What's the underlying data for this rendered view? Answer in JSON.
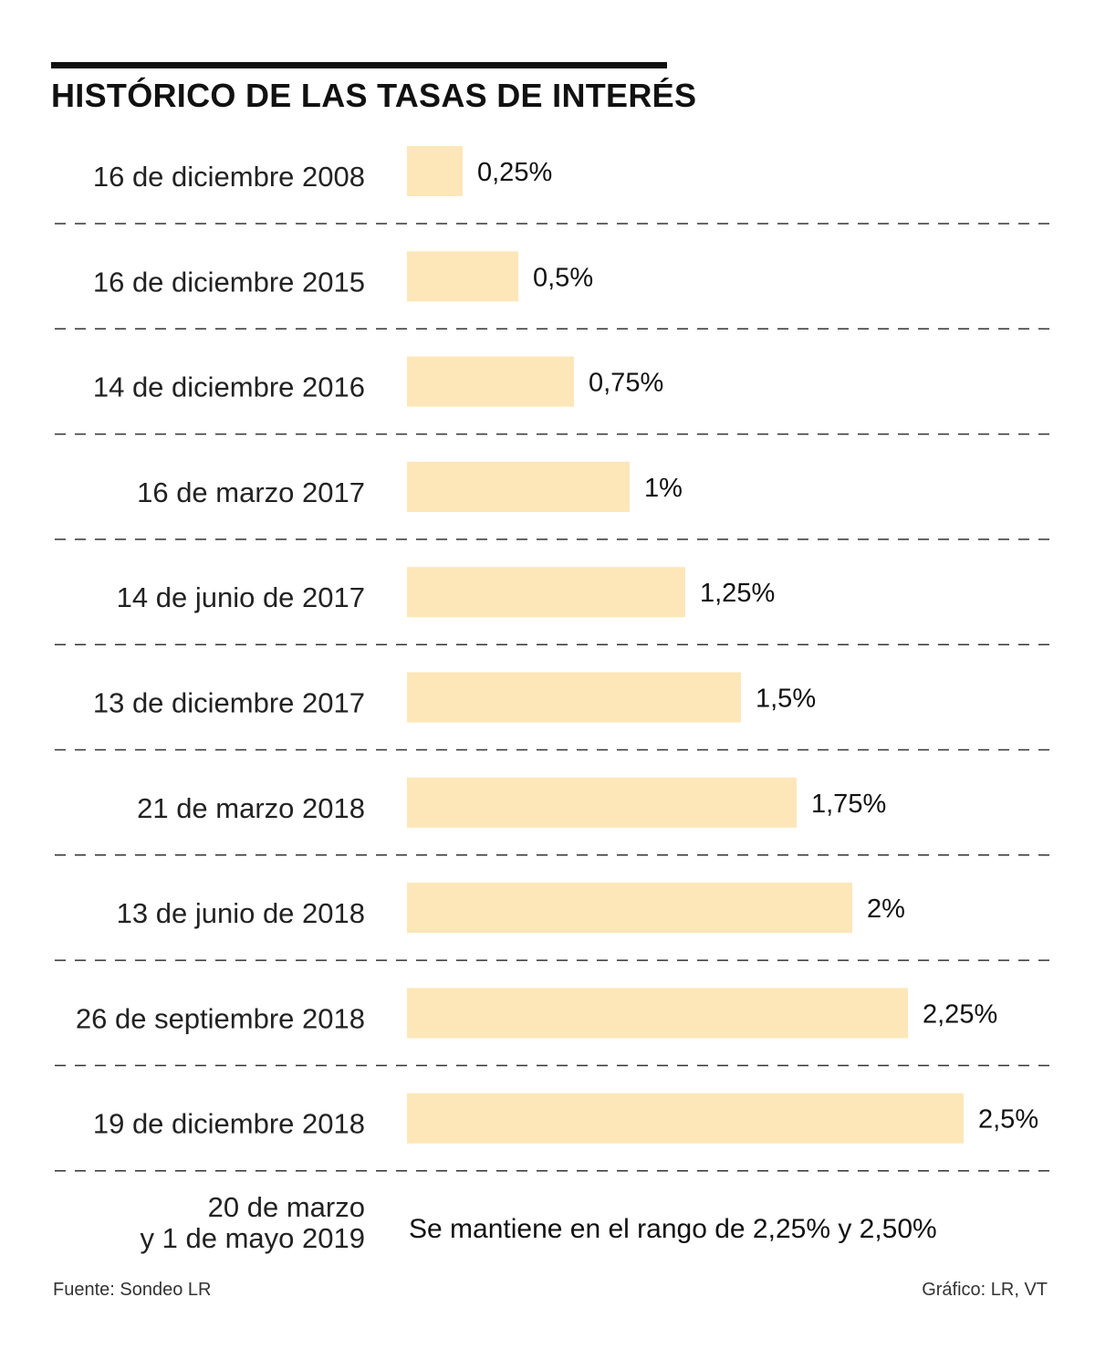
{
  "title": "HISTÓRICO DE LAS TASAS DE INTERÉS",
  "chart_data": {
    "type": "bar",
    "orientation": "horizontal",
    "title": "HISTÓRICO DE LAS TASAS DE INTERÉS",
    "categories": [
      "16 de diciembre 2008",
      "16 de diciembre 2015",
      "14 de diciembre 2016",
      "16 de marzo 2017",
      "14 de junio de 2017",
      "13 de diciembre 2017",
      "21 de marzo 2018",
      "13 de junio de 2018",
      "26 de septiembre 2018",
      "19 de diciembre 2018"
    ],
    "values": [
      0.25,
      0.5,
      0.75,
      1,
      1.25,
      1.5,
      1.75,
      2,
      2.25,
      2.5
    ],
    "value_labels": [
      "0,25%",
      "0,5%",
      "0,75%",
      "1%",
      "1,25%",
      "1,5%",
      "1,75%",
      "2%",
      "2,25%",
      "2,5%"
    ],
    "unit": "%",
    "xlim": [
      0,
      2.5
    ],
    "bar_color": "#fde7b9",
    "separator_color": "#333333",
    "grid": false,
    "legend": "none"
  },
  "final_row": {
    "label_line1": "20 de marzo",
    "label_line2": "y 1 de mayo 2019",
    "note": "Se mantiene en el rango de 2,25% y 2,50%"
  },
  "footer": {
    "source": "Fuente: Sondeo LR",
    "credit": "Gráfico: LR, VT"
  }
}
